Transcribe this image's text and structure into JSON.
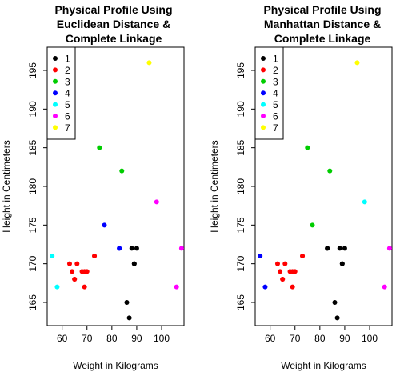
{
  "chart_data": [
    {
      "type": "scatter",
      "title_lines": [
        "Physical Profile Using",
        "Euclidean Distance &",
        "Complete Linkage"
      ],
      "xlabel": "Weight in Kilograms",
      "ylabel": "Height in Centimeters",
      "xlim": [
        54,
        109
      ],
      "ylim": [
        162,
        198
      ],
      "xticks": [
        60,
        70,
        80,
        90,
        100
      ],
      "yticks": [
        165,
        170,
        175,
        180,
        185,
        190,
        195
      ],
      "grid": false,
      "legend_position": "top-left",
      "series": [
        {
          "name": "1",
          "color": "#000000",
          "points": [
            [
              86,
              165
            ],
            [
              87,
              163
            ],
            [
              88,
              172
            ],
            [
              89,
              170
            ],
            [
              89,
              170
            ],
            [
              90,
              172
            ]
          ]
        },
        {
          "name": "2",
          "color": "#ff0000",
          "points": [
            [
              63,
              170
            ],
            [
              64,
              169
            ],
            [
              65,
              168
            ],
            [
              65,
              168
            ],
            [
              66,
              170
            ],
            [
              68,
              169
            ],
            [
              69,
              169
            ],
            [
              69,
              167
            ],
            [
              70,
              169
            ],
            [
              73,
              171
            ],
            [
              73,
              171
            ]
          ]
        },
        {
          "name": "3",
          "color": "#00cd00",
          "points": [
            [
              75,
              185
            ],
            [
              84,
              182
            ]
          ]
        },
        {
          "name": "4",
          "color": "#0000ff",
          "points": [
            [
              77,
              175
            ],
            [
              83,
              172
            ],
            [
              83,
              172
            ]
          ]
        },
        {
          "name": "5",
          "color": "#00ffff",
          "points": [
            [
              56,
              171
            ],
            [
              58,
              167
            ]
          ]
        },
        {
          "name": "6",
          "color": "#ff00ff",
          "points": [
            [
              98,
              178
            ],
            [
              106,
              167
            ],
            [
              108,
              172
            ]
          ]
        },
        {
          "name": "7",
          "color": "#ffff00",
          "points": [
            [
              95,
              196
            ]
          ]
        }
      ]
    },
    {
      "type": "scatter",
      "title_lines": [
        "Physical Profile Using",
        "Manhattan Distance &",
        "Complete Linkage"
      ],
      "xlabel": "Weight in Kilograms",
      "ylabel": "Height in Centimeters",
      "xlim": [
        54,
        109
      ],
      "ylim": [
        162,
        198
      ],
      "xticks": [
        60,
        70,
        80,
        90,
        100
      ],
      "yticks": [
        165,
        170,
        175,
        180,
        185,
        190,
        195
      ],
      "grid": false,
      "legend_position": "top-left",
      "series": [
        {
          "name": "1",
          "color": "#000000",
          "points": [
            [
              83,
              172
            ],
            [
              83,
              172
            ],
            [
              86,
              165
            ],
            [
              87,
              163
            ],
            [
              88,
              172
            ],
            [
              89,
              170
            ],
            [
              89,
              170
            ],
            [
              90,
              172
            ]
          ]
        },
        {
          "name": "2",
          "color": "#ff0000",
          "points": [
            [
              63,
              170
            ],
            [
              64,
              169
            ],
            [
              65,
              168
            ],
            [
              65,
              168
            ],
            [
              66,
              170
            ],
            [
              68,
              169
            ],
            [
              69,
              169
            ],
            [
              69,
              167
            ],
            [
              70,
              169
            ],
            [
              73,
              171
            ],
            [
              73,
              171
            ]
          ]
        },
        {
          "name": "3",
          "color": "#00cd00",
          "points": [
            [
              75,
              185
            ],
            [
              77,
              175
            ],
            [
              84,
              182
            ]
          ]
        },
        {
          "name": "4",
          "color": "#0000ff",
          "points": [
            [
              56,
              171
            ],
            [
              58,
              167
            ]
          ]
        },
        {
          "name": "5",
          "color": "#00ffff",
          "points": [
            [
              98,
              178
            ]
          ]
        },
        {
          "name": "6",
          "color": "#ff00ff",
          "points": [
            [
              106,
              167
            ],
            [
              108,
              172
            ]
          ]
        },
        {
          "name": "7",
          "color": "#ffff00",
          "points": [
            [
              95,
              196
            ]
          ]
        }
      ]
    }
  ]
}
